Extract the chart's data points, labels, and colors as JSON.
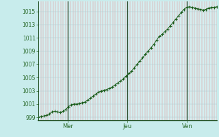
{
  "background_color": "#c8ecec",
  "plot_bg_color": "#d4eef0",
  "line_color": "#1a5c1a",
  "marker_color": "#1a5c1a",
  "axis_label_color": "#2a6a2a",
  "axis_line_color": "#1a4a1a",
  "ylim": [
    998.5,
    1016.5
  ],
  "yticks": [
    999,
    1001,
    1003,
    1005,
    1007,
    1009,
    1011,
    1013,
    1015
  ],
  "total_hours": 72,
  "mer_hour": 12,
  "jeu_hour": 36,
  "ven_hour": 60,
  "num_vertical_lines": 72,
  "y_values": [
    999.0,
    999.1,
    999.2,
    999.3,
    999.5,
    999.8,
    999.9,
    999.8,
    999.7,
    999.9,
    1000.2,
    1000.6,
    1000.9,
    1001.0,
    1001.0,
    1001.1,
    1001.2,
    1001.3,
    1001.6,
    1001.9,
    1002.2,
    1002.5,
    1002.8,
    1003.0,
    1003.1,
    1003.2,
    1003.4,
    1003.6,
    1003.9,
    1004.2,
    1004.5,
    1004.8,
    1005.2,
    1005.6,
    1006.0,
    1006.5,
    1007.0,
    1007.5,
    1008.0,
    1008.5,
    1009.0,
    1009.5,
    1010.0,
    1010.6,
    1011.2,
    1011.5,
    1011.9,
    1012.3,
    1012.8,
    1013.3,
    1013.8,
    1014.3,
    1014.8,
    1015.3,
    1015.6,
    1015.7,
    1015.6,
    1015.5,
    1015.4,
    1015.3,
    1015.2,
    1015.3,
    1015.5,
    1015.6,
    1015.6,
    1015.7
  ]
}
